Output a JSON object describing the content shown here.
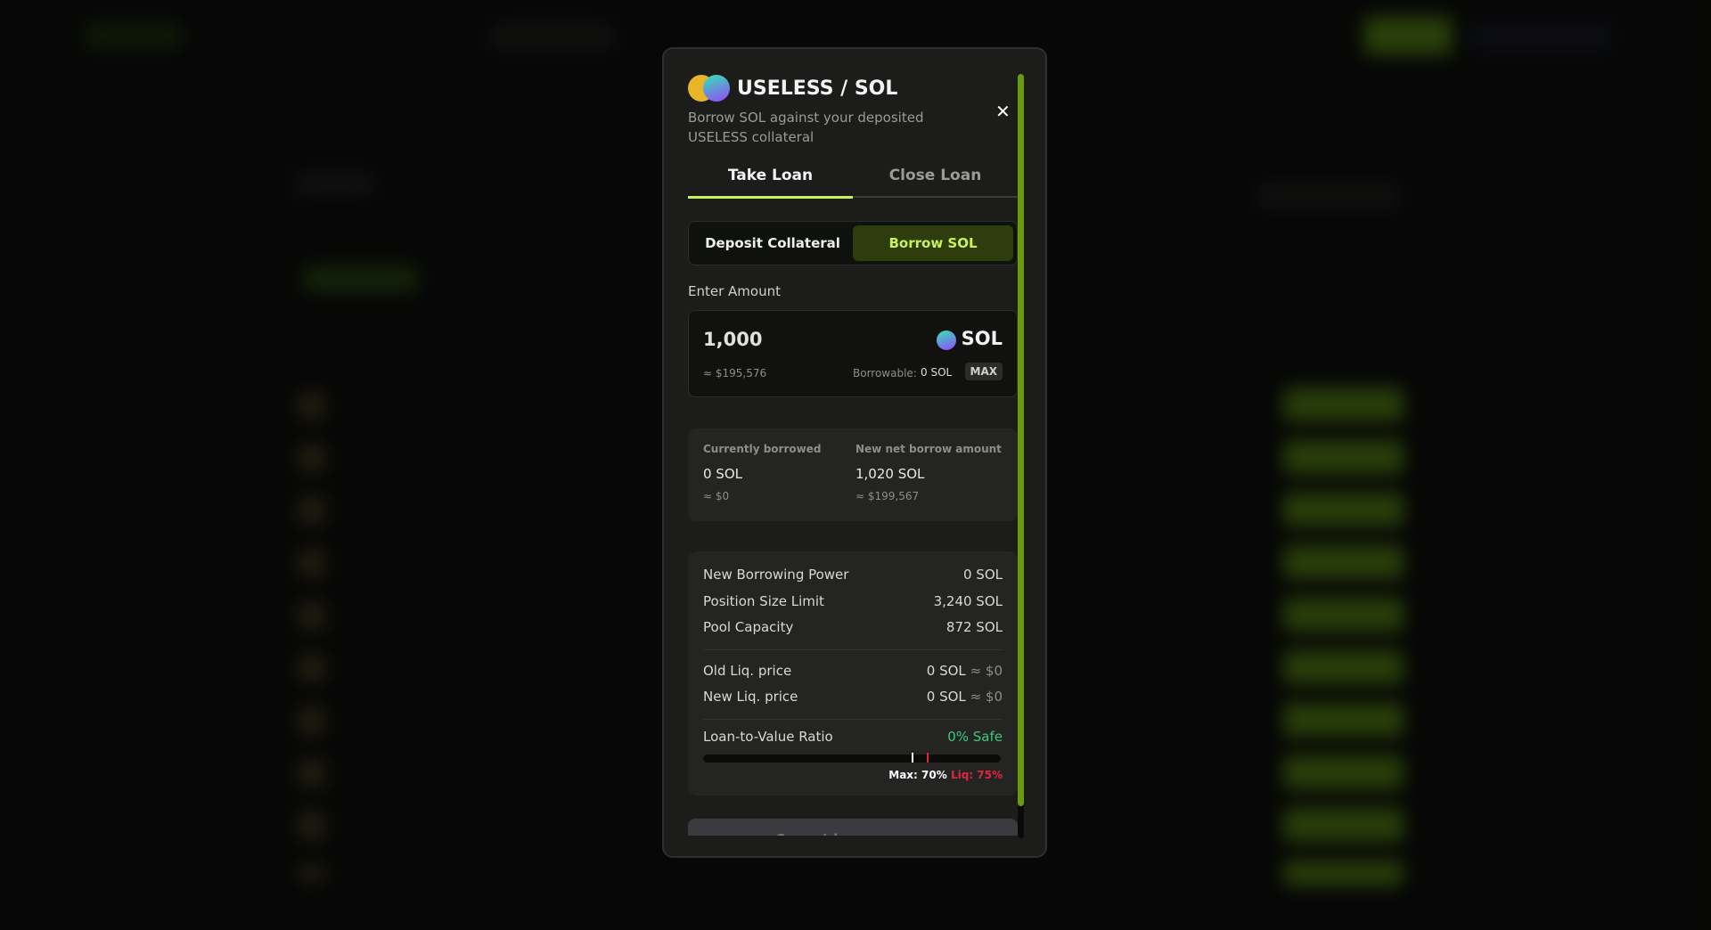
{
  "modal": {
    "pair_title": "USELESS / SOL",
    "subtitle": "Borrow SOL against your deposited USELESS collateral",
    "tabs": [
      "Take Loan",
      "Close Loan"
    ],
    "active_tab": "Take Loan",
    "mode_toggle": {
      "options": [
        "Deposit Collateral",
        "Borrow SOL"
      ],
      "active": "Borrow SOL"
    },
    "amount": {
      "label": "Enter Amount",
      "value": "1,000",
      "token": "SOL",
      "usd": "≈ $195,576",
      "borrowable_label": "Borrowable:",
      "borrowable_value": "0 SOL",
      "max_label": "MAX"
    },
    "summary": {
      "current_label": "Currently borrowed",
      "current_value": "0 SOL",
      "current_usd": "≈ $0",
      "new_label": "New net borrow amount",
      "new_value": "1,020 SOL",
      "new_usd": "≈ $199,567"
    },
    "details": [
      {
        "label": "New Borrowing Power",
        "value": "0 SOL"
      },
      {
        "label": "Position Size Limit",
        "value": "3,240 SOL"
      },
      {
        "label": "Pool Capacity",
        "value": "872 SOL"
      }
    ],
    "liq": [
      {
        "label": "Old Liq. price",
        "value": "0 SOL",
        "usd": "≈ $0"
      },
      {
        "label": "New Liq. price",
        "value": "0 SOL",
        "usd": "≈ $0"
      }
    ],
    "ltv": {
      "label": "Loan-to-Value Ratio",
      "status": "0% Safe",
      "value_percent": 0,
      "max_label": "Max: 70%",
      "liq_label": "Liq: 75%",
      "max_percent": 70,
      "liq_percent": 75
    },
    "submit_label": "Cannot borrow more"
  },
  "colors": {
    "accent": "#c6f25a",
    "safe": "#3ec97a",
    "danger": "#e0253f"
  }
}
